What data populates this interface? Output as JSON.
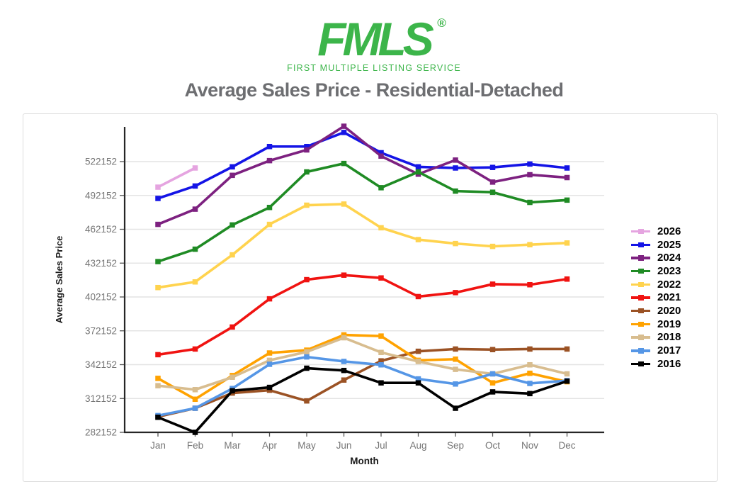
{
  "logo": {
    "brand": "FMLS",
    "registered": "®",
    "tagline": "FIRST MULTIPLE LISTING SERVICE",
    "color": "#3CB54A"
  },
  "title": "Average Sales Price - Residential-Detached",
  "colors": {
    "logo_green": "#3CB54A",
    "title_gray": "#6d6e71",
    "tick_label_gray": "#757575",
    "axis_title_black": "#1a1a1a",
    "grid_line": "#e4e4e4",
    "axis_line": "#262626",
    "panel_border": "#dcdcdc"
  },
  "chart_data": {
    "type": "line",
    "title": "Average Sales Price - Residential-Detached",
    "xlabel": "Month",
    "ylabel": "Average Sales Price",
    "categories": [
      "Jan",
      "Feb",
      "Mar",
      "Apr",
      "May",
      "Jun",
      "Jul",
      "Aug",
      "Sep",
      "Oct",
      "Nov",
      "Dec"
    ],
    "y_ticks": [
      282152,
      312152,
      342152,
      372152,
      402152,
      432152,
      462152,
      492152,
      522152
    ],
    "ylim": [
      282152,
      552900
    ],
    "grid": true,
    "legend_position": "right",
    "marker": "square",
    "series": [
      {
        "name": "2026",
        "color": "#E5A4E0",
        "values": [
          499500,
          516500
        ]
      },
      {
        "name": "2025",
        "color": "#1414E6",
        "values": [
          489500,
          500500,
          517500,
          535500,
          535500,
          548000,
          530000,
          517500,
          516500,
          517000,
          520000,
          516500
        ]
      },
      {
        "name": "2024",
        "color": "#7D2180",
        "values": [
          466500,
          480000,
          510000,
          523000,
          532500,
          553500,
          527000,
          511000,
          523500,
          504000,
          510500,
          508000
        ]
      },
      {
        "name": "2023",
        "color": "#1F8B24",
        "values": [
          433500,
          444500,
          466000,
          481500,
          513000,
          520500,
          499000,
          513000,
          496000,
          495000,
          486000,
          488000
        ]
      },
      {
        "name": "2022",
        "color": "#FFD34E",
        "values": [
          410500,
          415500,
          439500,
          466500,
          483500,
          484500,
          463500,
          453000,
          449500,
          447000,
          448500,
          450000
        ]
      },
      {
        "name": "2021",
        "color": "#F01311",
        "values": [
          351000,
          356000,
          375500,
          400500,
          417500,
          421500,
          419000,
          402500,
          406000,
          413500,
          413000,
          418000
        ]
      },
      {
        "name": "2020",
        "color": "#9B5224",
        "values": [
          296000,
          303500,
          317000,
          319500,
          310000,
          328500,
          345500,
          354000,
          356000,
          355500,
          356000,
          356000
        ]
      },
      {
        "name": "2019",
        "color": "#FFA200",
        "values": [
          330000,
          311500,
          332500,
          352500,
          355000,
          368500,
          367500,
          346000,
          347000,
          326000,
          334500,
          327000
        ]
      },
      {
        "name": "2018",
        "color": "#D8BD8F",
        "values": [
          323500,
          320000,
          331000,
          346000,
          353500,
          366000,
          353000,
          345000,
          338000,
          334000,
          342000,
          334000
        ]
      },
      {
        "name": "2017",
        "color": "#5596E6",
        "values": [
          297000,
          303500,
          321000,
          342500,
          349000,
          345000,
          342000,
          329500,
          325000,
          334000,
          325500,
          328000
        ]
      },
      {
        "name": "2016",
        "color": "#000000",
        "values": [
          295500,
          282152,
          319000,
          322000,
          339000,
          337000,
          326000,
          326000,
          303500,
          318000,
          316500,
          327500
        ]
      }
    ]
  }
}
